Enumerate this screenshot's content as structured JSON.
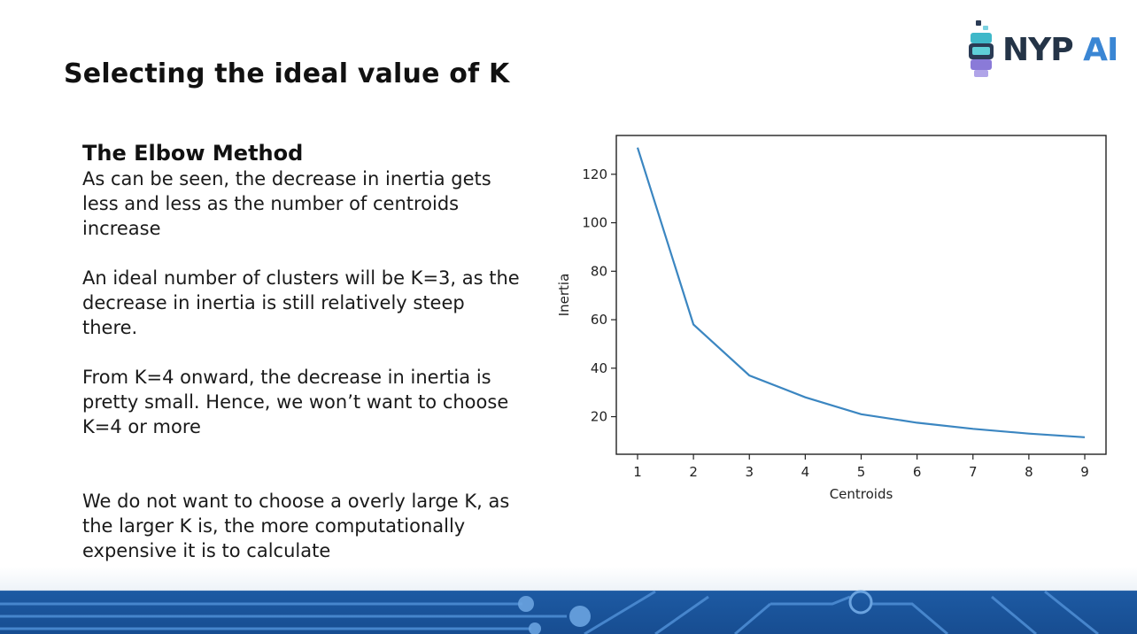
{
  "slide": {
    "title": "Selecting the ideal value of K"
  },
  "logo": {
    "brand": "NYP",
    "suffix": "AI"
  },
  "content": {
    "heading": "The Elbow Method",
    "paragraphs": [
      "As can be seen, the decrease in inertia gets\nless and less as the number of centroids\nincrease",
      "An ideal number of clusters will be K=3, as the\ndecrease in inertia is still relatively steep\nthere.",
      "From K=4 onward, the decrease in inertia is\npretty small. Hence, we won’t want to choose\nK=4 or more",
      "We do not want to choose a overly large K, as\nthe larger K is, the more computationally\nexpensive it is to calculate"
    ]
  },
  "chart_data": {
    "type": "line",
    "title": "",
    "xlabel": "Centroids",
    "ylabel": "Inertia",
    "x": [
      1,
      2,
      3,
      4,
      5,
      6,
      7,
      8,
      9
    ],
    "series": [
      {
        "values": [
          131,
          58,
          37,
          28,
          21,
          17.5,
          15,
          13,
          11.5
        ]
      }
    ],
    "xticks": [
      "1",
      "2",
      "3",
      "4",
      "5",
      "6",
      "7",
      "8",
      "9"
    ],
    "yticks": [
      "20",
      "40",
      "60",
      "80",
      "100",
      "120"
    ],
    "xlim": [
      0.62,
      9.38
    ],
    "ylim": [
      4.5,
      136
    ],
    "grid": false,
    "line_color": "#3b86c1"
  },
  "colors": {
    "footer_band": "#1f5fa8",
    "footer_line": "#4f8fd6"
  }
}
